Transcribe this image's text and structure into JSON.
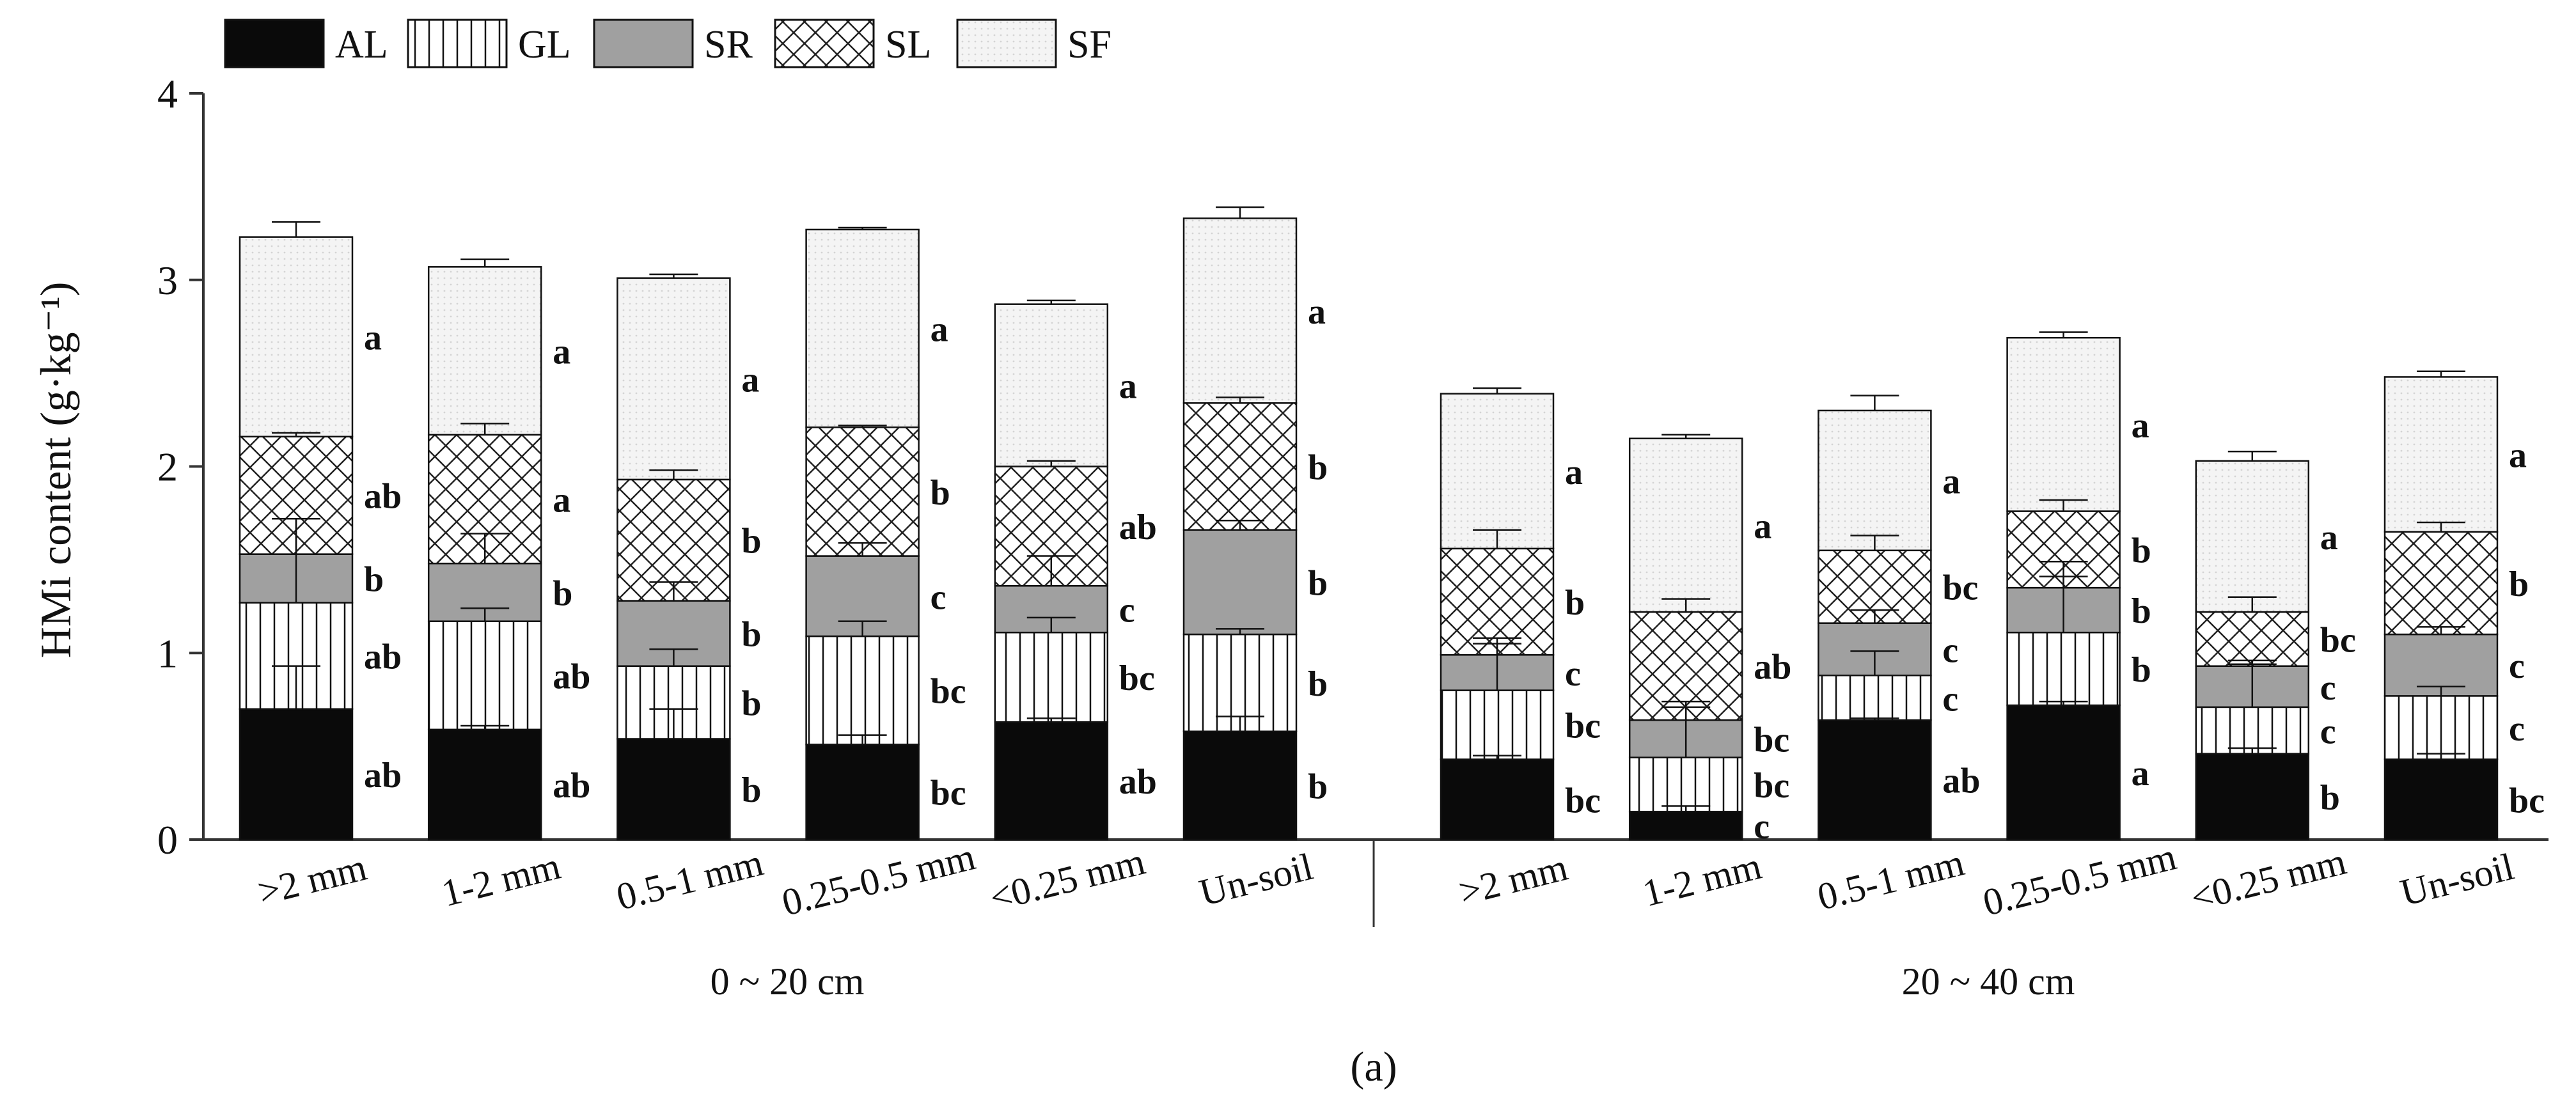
{
  "chart_data": {
    "type": "bar",
    "stacked": true,
    "ylabel": "HMi content (g·kg⁻¹)",
    "ylim": [
      0,
      4
    ],
    "yticks": [
      "0",
      "1",
      "2",
      "3",
      "4"
    ],
    "caption": "(a)",
    "legend": {
      "position": "top-left",
      "entries": [
        "AL",
        "GL",
        "SR",
        "SL",
        "SF"
      ]
    },
    "series": [
      {
        "name": "AL",
        "color": "#0a0a0a",
        "pattern": "solid"
      },
      {
        "name": "GL",
        "color": "#ffffff",
        "pattern": "vertical-lines"
      },
      {
        "name": "SR",
        "color": "#a0a0a0",
        "pattern": "solid"
      },
      {
        "name": "SL",
        "color": "#ffffff",
        "pattern": "crosshatch"
      },
      {
        "name": "SF",
        "color": "#f3f3f3",
        "pattern": "dots"
      }
    ],
    "groups": [
      {
        "label": "0 ~ 20 cm",
        "categories": [
          ">2 mm",
          "1-2 mm",
          "0.5-1 mm",
          "0.25-0.5 mm",
          "<0.25 mm",
          "Un-soil"
        ],
        "values": {
          "AL": [
            0.7,
            0.59,
            0.54,
            0.51,
            0.63,
            0.58
          ],
          "GL": [
            0.57,
            0.58,
            0.39,
            0.58,
            0.48,
            0.52
          ],
          "SR": [
            0.26,
            0.31,
            0.35,
            0.43,
            0.25,
            0.56
          ],
          "SL": [
            0.63,
            0.69,
            0.65,
            0.69,
            0.64,
            0.68
          ],
          "SF": [
            1.07,
            0.9,
            1.08,
            1.06,
            0.87,
            0.99
          ]
        },
        "errors": {
          "AL": [
            0.23,
            0.02,
            0.16,
            0.05,
            0.02,
            0.08
          ],
          "GL": [
            0.45,
            0.07,
            0.09,
            0.08,
            0.08,
            0.03
          ],
          "SR": [
            0.19,
            0.16,
            0.1,
            0.07,
            0.16,
            0.05
          ],
          "SL": [
            0.02,
            0.06,
            0.05,
            0.01,
            0.03,
            0.03
          ],
          "SF": [
            0.08,
            0.04,
            0.02,
            0.01,
            0.02,
            0.06
          ]
        },
        "letters": {
          "AL": [
            "ab",
            "ab",
            "b",
            "bc",
            "ab",
            "b"
          ],
          "GL": [
            "ab",
            "ab",
            "b",
            "bc",
            "bc",
            "b"
          ],
          "SR": [
            "b",
            "b",
            "b",
            "c",
            "c",
            "b"
          ],
          "SL": [
            "ab",
            "a",
            "b",
            "b",
            "ab",
            "b"
          ],
          "SF": [
            "a",
            "a",
            "a",
            "a",
            "a",
            "a"
          ]
        }
      },
      {
        "label": "20 ~ 40 cm",
        "categories": [
          ">2 mm",
          "1-2 mm",
          "0.5-1 mm",
          "0.25-0.5 mm",
          "<0.25 mm",
          "Un-soil"
        ],
        "values": {
          "AL": [
            0.43,
            0.15,
            0.64,
            0.72,
            0.46,
            0.43
          ],
          "GL": [
            0.37,
            0.29,
            0.24,
            0.39,
            0.25,
            0.34
          ],
          "SR": [
            0.19,
            0.2,
            0.28,
            0.24,
            0.22,
            0.33
          ],
          "SL": [
            0.57,
            0.58,
            0.39,
            0.41,
            0.29,
            0.55
          ],
          "SF": [
            0.83,
            0.93,
            0.75,
            0.93,
            0.81,
            0.83
          ]
        },
        "errors": {
          "AL": [
            0.02,
            0.03,
            0.01,
            0.02,
            0.03,
            0.03
          ],
          "GL": [
            0.28,
            0.27,
            0.13,
            0.38,
            0.23,
            0.05
          ],
          "SR": [
            0.06,
            0.1,
            0.07,
            0.06,
            0.03,
            0.04
          ],
          "SL": [
            0.1,
            0.07,
            0.08,
            0.06,
            0.08,
            0.05
          ],
          "SF": [
            0.03,
            0.02,
            0.08,
            0.03,
            0.05,
            0.03
          ]
        },
        "letters": {
          "AL": [
            "bc",
            "c",
            "ab",
            "a",
            "b",
            "bc"
          ],
          "GL": [
            "bc",
            "bc",
            "c",
            "b",
            "c",
            "c"
          ],
          "SR": [
            "c",
            "bc",
            "c",
            "b",
            "c",
            "c"
          ],
          "SL": [
            "b",
            "ab",
            "bc",
            "b",
            "bc",
            "b"
          ],
          "SF": [
            "a",
            "a",
            "a",
            "a",
            "a",
            "a"
          ]
        }
      }
    ]
  }
}
